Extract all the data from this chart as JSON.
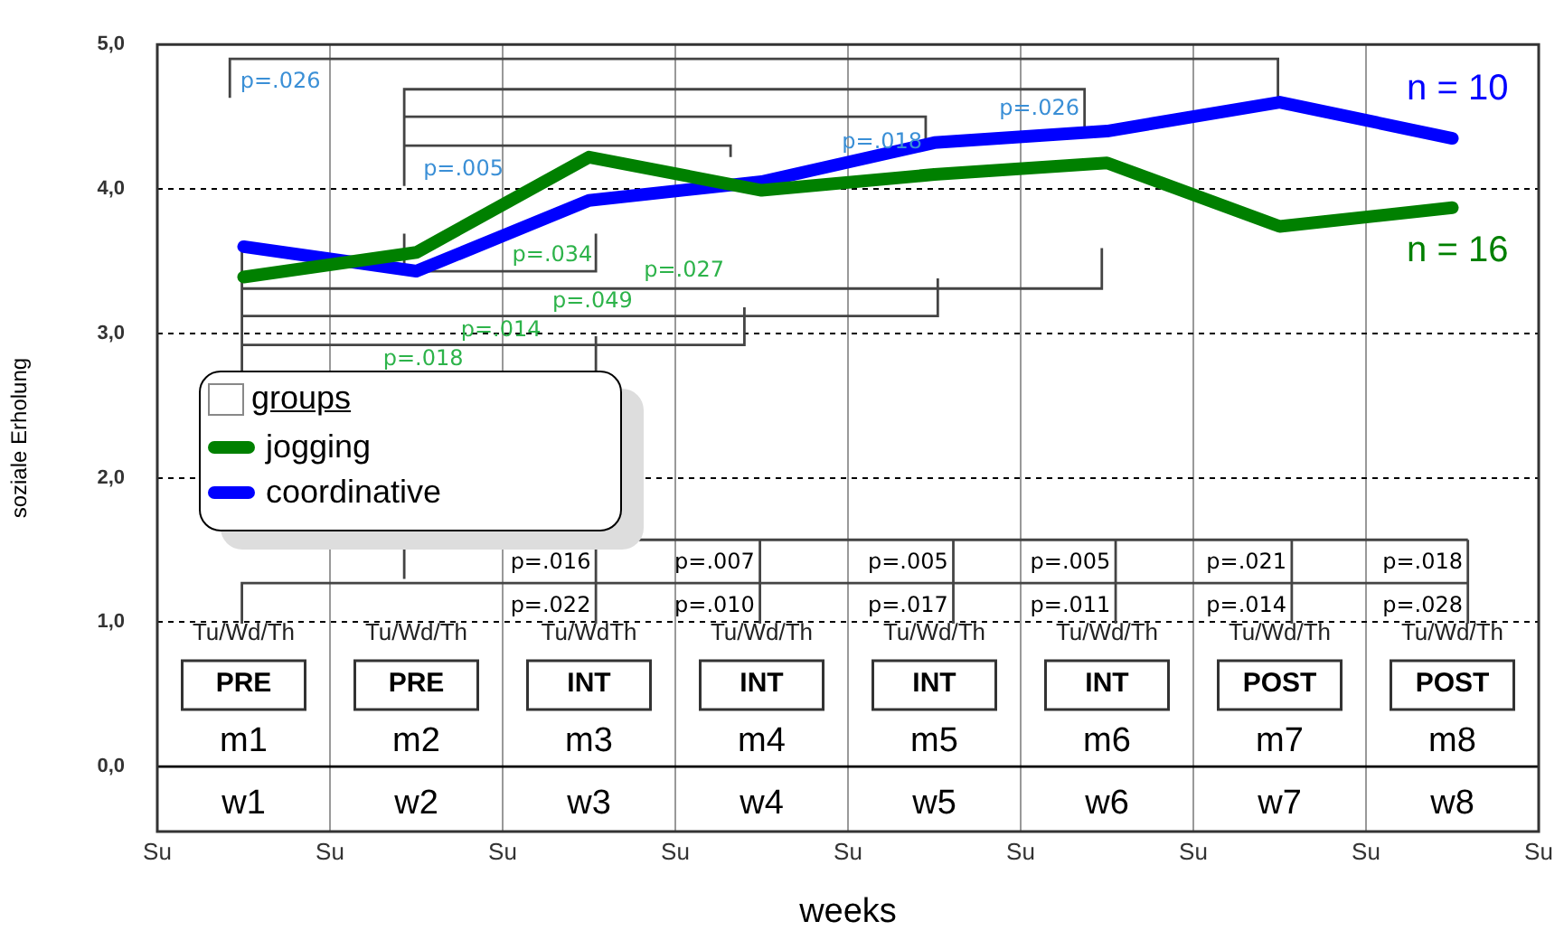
{
  "chart_data": {
    "type": "line",
    "xlabel": "weeks",
    "ylabel": "soziale Erholung",
    "legend_title": "groups",
    "legend": "left",
    "grid": true,
    "marker": "none",
    "line_style": "solid",
    "categories": [
      "w1",
      "w2",
      "w3",
      "w4",
      "w5",
      "w6",
      "w7",
      "w8"
    ],
    "ylim": [
      -0.45,
      5
    ],
    "yticks": [
      {
        "value": 0,
        "label": "0,0"
      },
      {
        "value": 1,
        "label": "1,0"
      },
      {
        "value": 2,
        "label": "2,0"
      },
      {
        "value": 3,
        "label": "3,0"
      },
      {
        "value": 4,
        "label": "4,0"
      },
      {
        "value": 5,
        "label": "5,0"
      }
    ],
    "series": [
      {
        "name": "jogging",
        "color": "#008000",
        "values": [
          3.39,
          3.56,
          4.22,
          3.99,
          4.1,
          4.18,
          3.74,
          3.87
        ]
      },
      {
        "name": "coordinative",
        "color": "#0000ff",
        "values": [
          3.6,
          3.43,
          3.92,
          4.05,
          4.32,
          4.4,
          4.6,
          4.35
        ]
      }
    ],
    "ref_lines": [
      {
        "axis": "y",
        "value": 0,
        "color": "#000000",
        "line_style": "solid"
      }
    ],
    "annotations": [
      "n = 10",
      "n = 16",
      "p=.026",
      "p=.005",
      "p=.018",
      "p=.026",
      "p=.034",
      "p=.027",
      "p=.049",
      "p=.014",
      "p=.018",
      "p=.016",
      "p=.022",
      "p=.007",
      "p=.010",
      "p=.005",
      "p=.017",
      "p=.005",
      "p=.011",
      "p=.021",
      "p=.014",
      "p=.018",
      "p=.028",
      "Tu/Wd/Th",
      "Tu/Wd/Th",
      "Tu/WdTh",
      "Tu/Wd/Th",
      "Tu/Wd/Th",
      "Tu/Wd/Th",
      "Tu/Wd/Th",
      "Tu/Wd/Th",
      "PRE",
      "PRE",
      "INT",
      "INT",
      "INT",
      "INT",
      "POST",
      "POST",
      "m1",
      "m2",
      "m3",
      "m4",
      "m5",
      "m6",
      "m7",
      "m8",
      "Su",
      "Su",
      "Su",
      "Su",
      "Su",
      "Su",
      "Su",
      "Su",
      "Su"
    ]
  }
}
